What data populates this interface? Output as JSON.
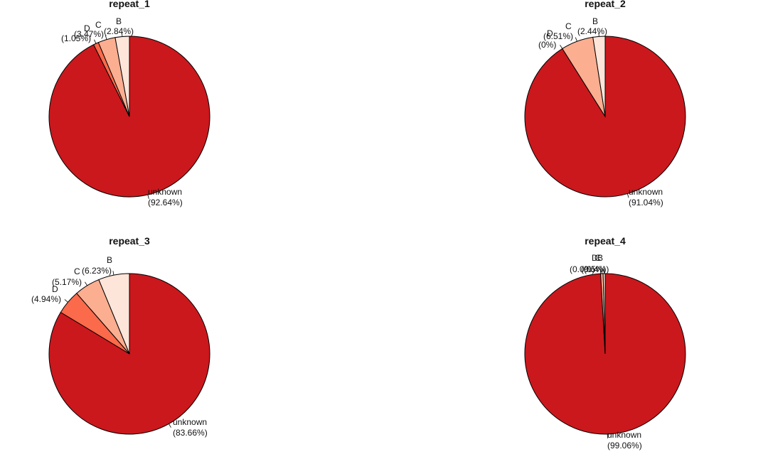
{
  "chart_data": [
    {
      "type": "pie",
      "title": "repeat_1",
      "slices": [
        {
          "label": "unknown",
          "pct_text": "(92.64%)",
          "value": 92.64,
          "color": "#cb181d"
        },
        {
          "label": "D",
          "pct_text": "(1.05%)",
          "value": 1.05,
          "color": "#fb6a4a"
        },
        {
          "label": "C",
          "pct_text": "(3.47%)",
          "value": 3.47,
          "color": "#fcae91"
        },
        {
          "label": "B",
          "pct_text": "(2.84%)",
          "value": 2.84,
          "color": "#fee5d9"
        }
      ]
    },
    {
      "type": "pie",
      "title": "repeat_2",
      "slices": [
        {
          "label": "unknown",
          "pct_text": "(91.04%)",
          "value": 91.04,
          "color": "#cb181d"
        },
        {
          "label": "D",
          "pct_text": "(0%)",
          "value": 0.0,
          "color": "#fb6a4a"
        },
        {
          "label": "C",
          "pct_text": "(6.51%)",
          "value": 6.51,
          "color": "#fcae91"
        },
        {
          "label": "B",
          "pct_text": "(2.44%)",
          "value": 2.44,
          "color": "#fee5d9"
        }
      ]
    },
    {
      "type": "pie",
      "title": "repeat_3",
      "slices": [
        {
          "label": "unknown",
          "pct_text": "(83.66%)",
          "value": 83.66,
          "color": "#cb181d"
        },
        {
          "label": "D",
          "pct_text": "(4.94%)",
          "value": 4.94,
          "color": "#fb6a4a"
        },
        {
          "label": "C",
          "pct_text": "(5.17%)",
          "value": 5.17,
          "color": "#fcae91"
        },
        {
          "label": "B",
          "pct_text": "(6.23%)",
          "value": 6.23,
          "color": "#fee5d9"
        }
      ]
    },
    {
      "type": "pie",
      "title": "repeat_4",
      "slices": [
        {
          "label": "unknown",
          "pct_text": "(99.06%)",
          "value": 99.06,
          "color": "#cb181d"
        },
        {
          "label": "D",
          "pct_text": "(0.0%)",
          "value": 0.0,
          "color": "#fb6a4a"
        },
        {
          "label": "C",
          "pct_text": "(0.5%)",
          "value": 0.5,
          "color": "#fcae91"
        },
        {
          "label": "B",
          "pct_text": "(0.4%)",
          "value": 0.4,
          "color": "#fee5d9"
        }
      ]
    }
  ]
}
